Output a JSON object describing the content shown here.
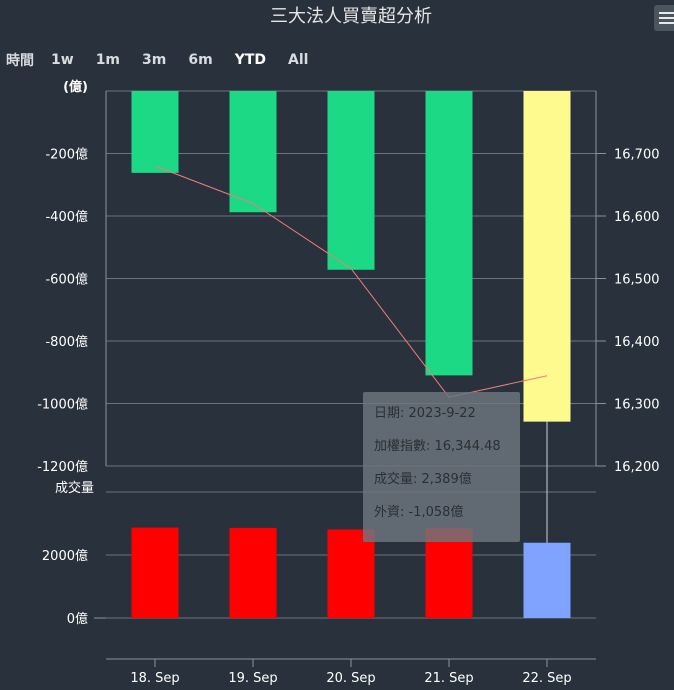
{
  "title": "三大法人買賣超分析",
  "range_selector": {
    "label": "時間",
    "buttons": [
      "1w",
      "1m",
      "3m",
      "6m",
      "YTD",
      "All"
    ],
    "selected": "YTD"
  },
  "tooltip": {
    "date": "日期: 2023-9-22",
    "index": "加權指數: 16,344.48",
    "volume": "成交量: 2,389億",
    "foreign": "外資: -1,058億"
  },
  "chart_data": [
    {
      "type": "bar",
      "categories": [
        "18. Sep",
        "19. Sep",
        "20. Sep",
        "21. Sep",
        "22. Sep"
      ],
      "series": [
        {
          "name": "外資",
          "values": [
            -262,
            -388,
            -572,
            -910,
            -1058
          ],
          "colors": [
            "#1cd985",
            "#1cd985",
            "#1cd985",
            "#1cd985",
            "#fffa8e"
          ]
        },
        {
          "name": "加權指數",
          "type": "line",
          "values": [
            16680,
            16620,
            16516,
            16310,
            16344.48
          ],
          "color": "#f07c7c"
        }
      ],
      "ylabel": "(億)",
      "ylim": [
        -1200,
        0
      ],
      "yticks": [
        0,
        -200,
        -400,
        -600,
        -800,
        -1000,
        -1200
      ],
      "ytick_labels": [
        "",
        "-200億",
        "-400億",
        "-600億",
        "-800億",
        "-1000億",
        "-1200億"
      ],
      "y2lim": [
        16200,
        16800
      ],
      "y2ticks": [
        16700,
        16600,
        16500,
        16400,
        16300,
        16200
      ],
      "y2tick_labels": [
        "16,700",
        "16,600",
        "16,500",
        "16,400",
        "16,300",
        "16,200"
      ],
      "grid": true
    },
    {
      "type": "bar",
      "categories": [
        "18. Sep",
        "19. Sep",
        "20. Sep",
        "21. Sep",
        "22. Sep"
      ],
      "series": [
        {
          "name": "成交量",
          "values": [
            2870,
            2860,
            2810,
            2850,
            2389
          ],
          "colors": [
            "#ff0000",
            "#ff0000",
            "#ff0000",
            "#ff0000",
            "#7fa3ff"
          ]
        }
      ],
      "ylabel": "成交量",
      "ylim": [
        0,
        4000
      ],
      "yticks": [
        0,
        2000
      ],
      "ytick_labels": [
        "0億",
        "2000億"
      ],
      "grid": true
    }
  ]
}
